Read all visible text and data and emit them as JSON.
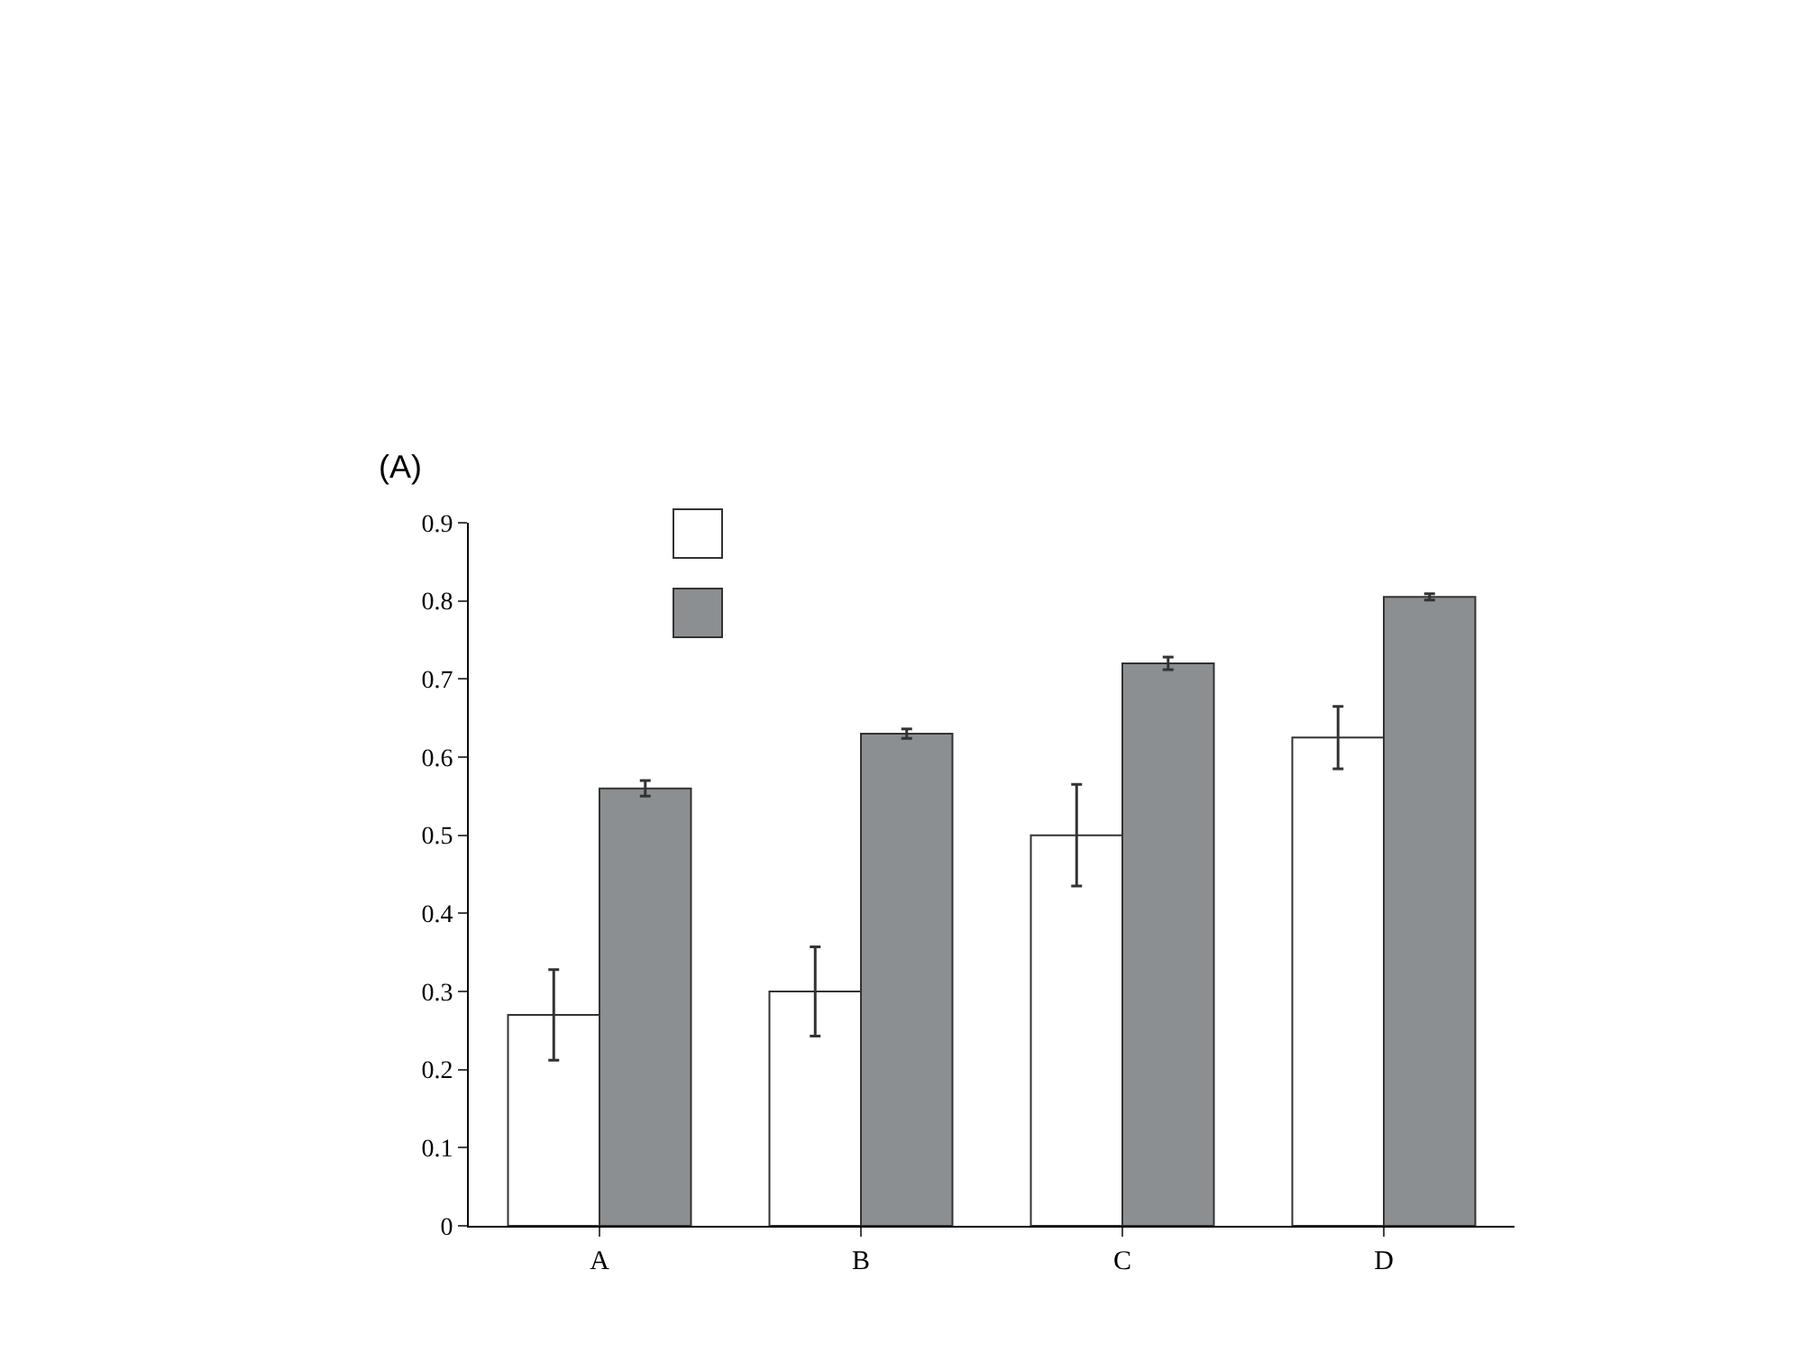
{
  "chart_data": {
    "type": "bar",
    "title": "(A)",
    "categories": [
      "A",
      "B",
      "C",
      "D"
    ],
    "series": [
      {
        "color": "#ffffff",
        "values": [
          0.27,
          0.3,
          0.5,
          0.625
        ],
        "errors": [
          0.058,
          0.057,
          0.065,
          0.04
        ]
      },
      {
        "color": "#8c8f91",
        "values": [
          0.56,
          0.63,
          0.72,
          0.805
        ],
        "errors": [
          0.01,
          0.006,
          0.008,
          0.004
        ]
      }
    ],
    "ylim": [
      0,
      0.9
    ],
    "yticks": [
      0,
      0.1,
      0.2,
      0.3,
      0.4,
      0.5,
      0.6,
      0.7,
      0.8,
      0.9
    ],
    "grid": false
  }
}
